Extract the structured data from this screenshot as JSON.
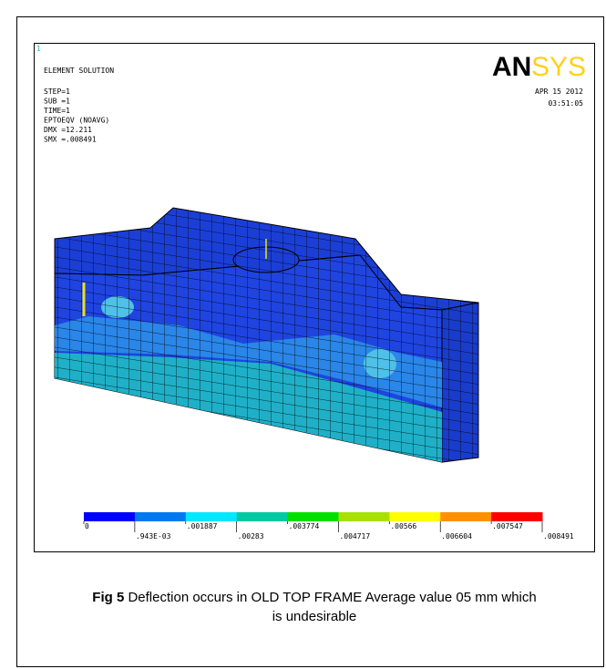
{
  "header": {
    "frame_number": "1",
    "title": "ELEMENT SOLUTION",
    "info": [
      "STEP=1",
      "SUB =1",
      "TIME=1",
      "EPTOEQV  (NOAVG)",
      "DMX =12.211",
      "SMX =.008491"
    ],
    "logo": {
      "an": "AN",
      "sys": "SYS"
    },
    "date": "APR 15 2012",
    "time": "03:51:05"
  },
  "legend": {
    "colors": [
      "#0000ff",
      "#0078f0",
      "#00e8ff",
      "#00c8a0",
      "#00e000",
      "#a8e000",
      "#ffff00",
      "#ff9000",
      "#ff0000"
    ],
    "labels": [
      "0",
      ".943E-03",
      ".001887",
      ".00283",
      ".003774",
      ".004717",
      ".00566",
      ".006604",
      ".007547",
      ".008491"
    ]
  },
  "caption": {
    "label": "Fig 5",
    "text": "Deflection occurs in OLD TOP FRAME Average value 05 mm which is undesirable"
  }
}
